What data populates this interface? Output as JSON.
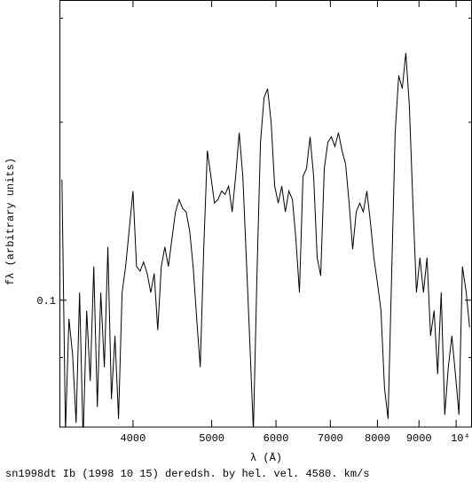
{
  "chart_data": {
    "type": "line",
    "caption": "sn1998dt Ib (1998 10 15) deredsh. by hel. vel.  4580. km/s",
    "xlabel": "λ (Å)",
    "ylabel": "fλ (arbitrary units)",
    "xscale": "log",
    "yscale": "log",
    "color": "#000000",
    "xlim": [
      3247,
      10460
    ],
    "ylim": [
      0.061,
      0.322
    ],
    "xticks": [
      4000,
      5000,
      6000,
      7000,
      8000,
      9000,
      {
        "value": 10000,
        "label": "10⁴"
      }
    ],
    "yticks": [
      0.1
    ],
    "yminorticks": [
      0.08,
      0.2,
      0.3
    ],
    "x": [
      3270,
      3303,
      3336,
      3370,
      3404,
      3438,
      3473,
      3508,
      3543,
      3579,
      3615,
      3651,
      3688,
      3725,
      3763,
      3801,
      3839,
      3878,
      3917,
      3956,
      4000,
      4040,
      4081,
      4122,
      4164,
      4206,
      4248,
      4291,
      4334,
      4378,
      4422,
      4467,
      4512,
      4558,
      4604,
      4650,
      4697,
      4744,
      4792,
      4840,
      4889,
      4939,
      4989,
      5039,
      5090,
      5141,
      5193,
      5246,
      5299,
      5352,
      5406,
      5461,
      5516,
      5572,
      5628,
      5685,
      5742,
      5800,
      5859,
      5918,
      5978,
      6038,
      6099,
      6161,
      6223,
      6286,
      6349,
      6413,
      6478,
      6543,
      6609,
      6676,
      6744,
      6812,
      6881,
      6950,
      7020,
      7091,
      7163,
      7235,
      7308,
      7382,
      7457,
      7532,
      7608,
      7685,
      7763,
      7841,
      7920,
      8000,
      8081,
      8163,
      8245,
      8328,
      8412,
      8497,
      8583,
      8670,
      8757,
      8846,
      8935,
      9025,
      9116,
      9208,
      9301,
      9395,
      9490,
      9586,
      9683,
      9781,
      9880,
      9980,
      10080,
      10180,
      10290,
      10390
    ],
    "values": [
      0.16,
      0.06,
      0.093,
      0.081,
      0.062,
      0.103,
      0.058,
      0.096,
      0.073,
      0.114,
      0.066,
      0.103,
      0.077,
      0.123,
      0.068,
      0.087,
      0.063,
      0.103,
      0.114,
      0.131,
      0.153,
      0.114,
      0.112,
      0.116,
      0.111,
      0.103,
      0.111,
      0.089,
      0.114,
      0.123,
      0.114,
      0.127,
      0.141,
      0.148,
      0.143,
      0.141,
      0.131,
      0.114,
      0.093,
      0.077,
      0.123,
      0.179,
      0.162,
      0.146,
      0.148,
      0.153,
      0.151,
      0.156,
      0.141,
      0.162,
      0.192,
      0.162,
      0.118,
      0.084,
      0.06,
      0.11,
      0.185,
      0.22,
      0.228,
      0.2,
      0.156,
      0.146,
      0.156,
      0.141,
      0.153,
      0.148,
      0.127,
      0.103,
      0.162,
      0.167,
      0.189,
      0.162,
      0.118,
      0.11,
      0.167,
      0.185,
      0.189,
      0.182,
      0.192,
      0.179,
      0.17,
      0.146,
      0.122,
      0.141,
      0.146,
      0.141,
      0.153,
      0.136,
      0.118,
      0.107,
      0.096,
      0.071,
      0.063,
      0.11,
      0.192,
      0.24,
      0.228,
      0.262,
      0.213,
      0.146,
      0.103,
      0.118,
      0.103,
      0.118,
      0.087,
      0.096,
      0.075,
      0.103,
      0.064,
      0.077,
      0.087,
      0.075,
      0.064,
      0.114,
      0.103,
      0.09
    ]
  }
}
